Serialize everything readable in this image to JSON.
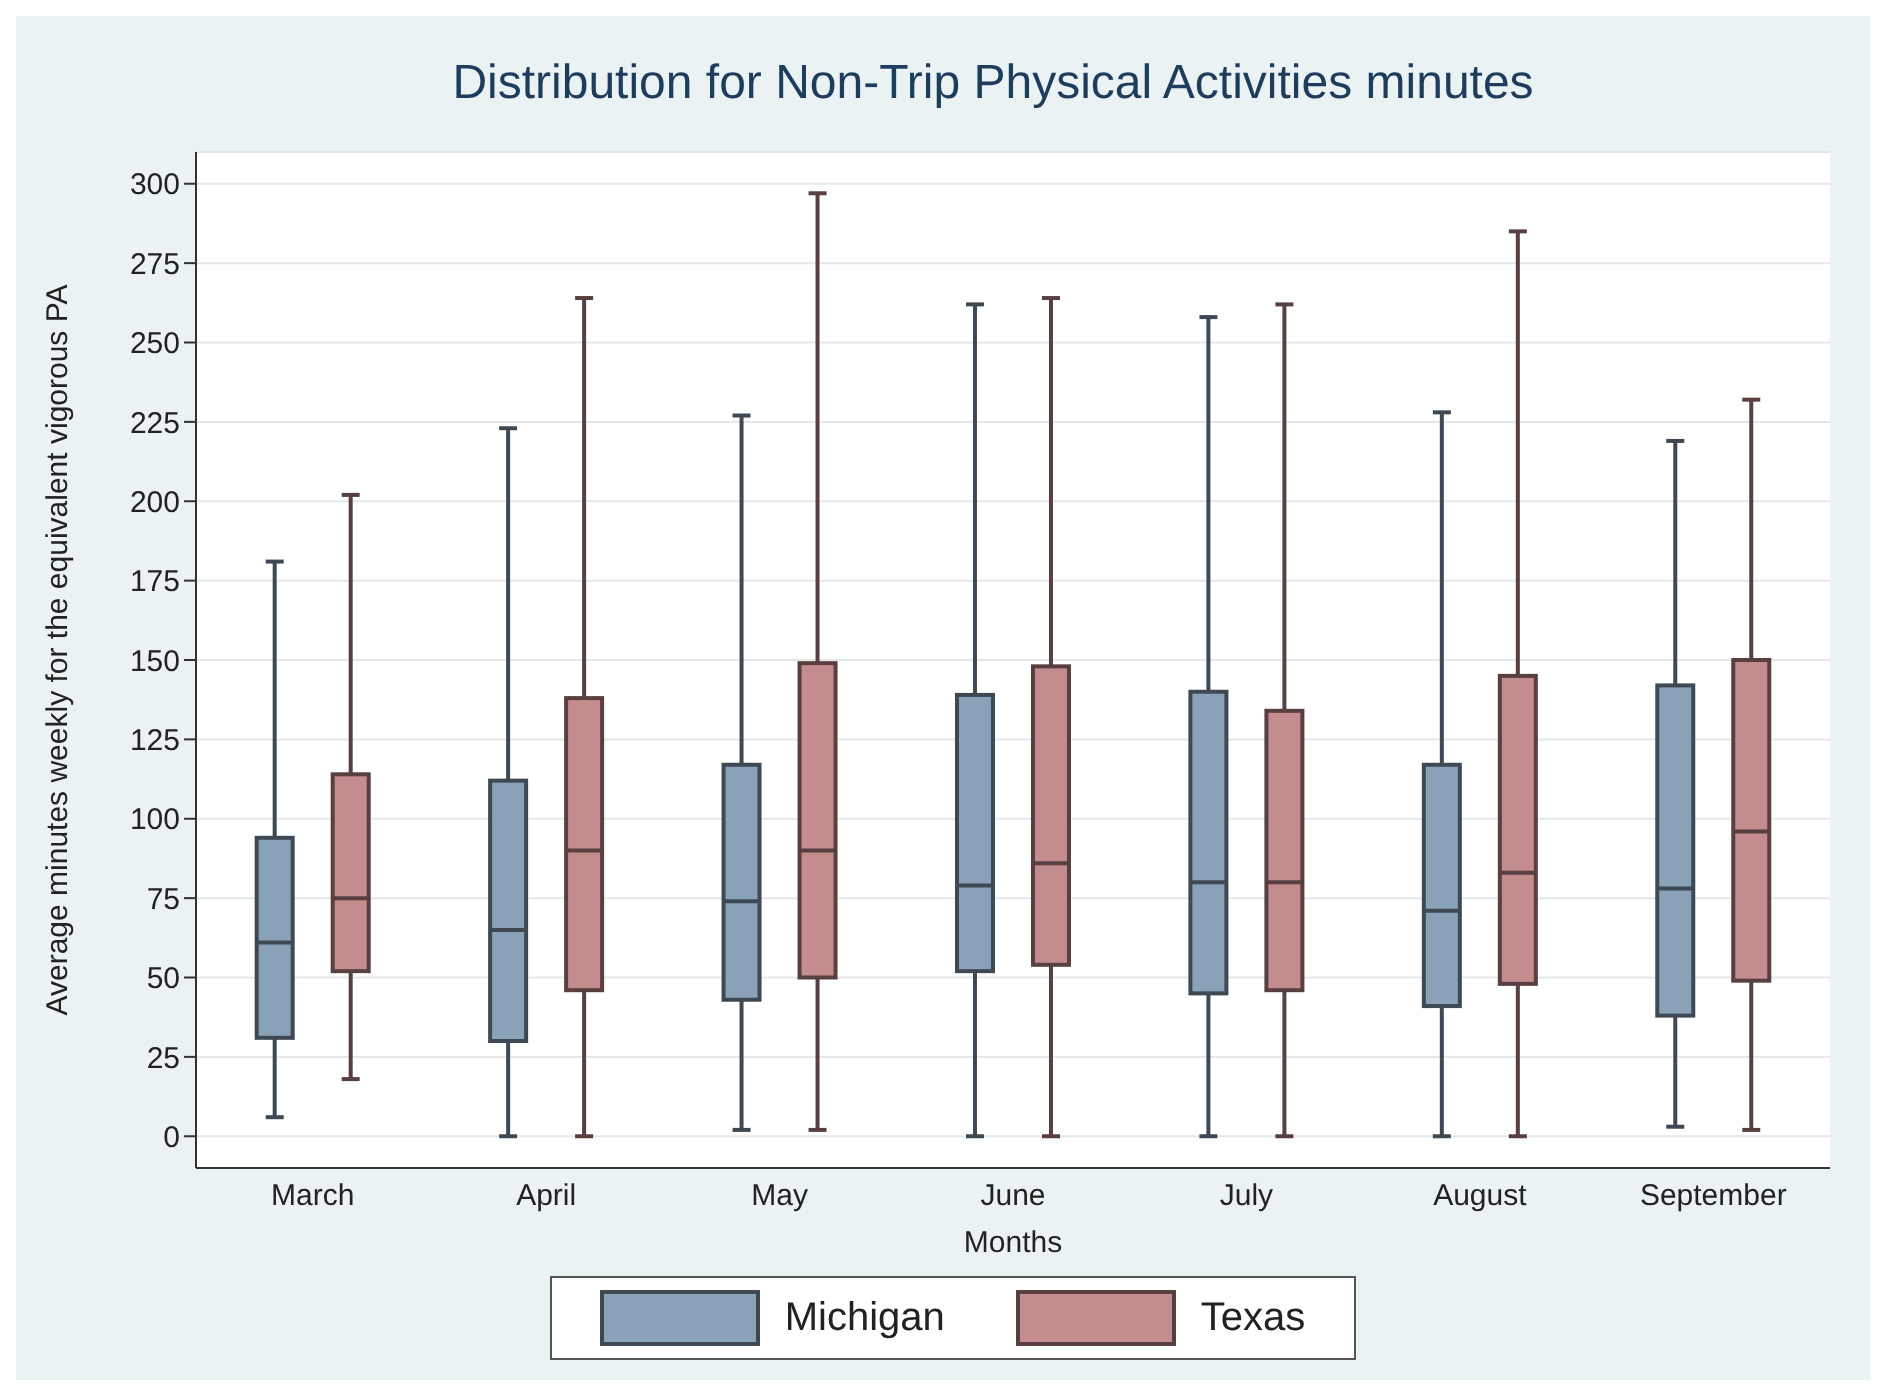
{
  "chart_data": {
    "type": "box",
    "title": "Distribution for Non-Trip Physical Activities minutes",
    "xlabel": "Months",
    "ylabel": "Average minutes weekly for the equivalent vigorous PA",
    "categories": [
      "March",
      "April",
      "May",
      "June",
      "July",
      "August",
      "September"
    ],
    "series": [
      {
        "name": "Michigan",
        "color": "#8aa2b8",
        "boxes": [
          {
            "low": 6,
            "q1": 31,
            "median": 61,
            "q3": 94,
            "high": 181
          },
          {
            "low": 0,
            "q1": 30,
            "median": 65,
            "q3": 112,
            "high": 223
          },
          {
            "low": 2,
            "q1": 43,
            "median": 74,
            "q3": 117,
            "high": 227
          },
          {
            "low": 0,
            "q1": 52,
            "median": 79,
            "q3": 139,
            "high": 262
          },
          {
            "low": 0,
            "q1": 45,
            "median": 80,
            "q3": 140,
            "high": 258
          },
          {
            "low": 0,
            "q1": 41,
            "median": 71,
            "q3": 117,
            "high": 228
          },
          {
            "low": 3,
            "q1": 38,
            "median": 78,
            "q3": 142,
            "high": 219
          }
        ]
      },
      {
        "name": "Texas",
        "color": "#c48c8f",
        "boxes": [
          {
            "low": 18,
            "q1": 52,
            "median": 75,
            "q3": 114,
            "high": 202
          },
          {
            "low": 0,
            "q1": 46,
            "median": 90,
            "q3": 138,
            "high": 264
          },
          {
            "low": 2,
            "q1": 50,
            "median": 90,
            "q3": 149,
            "high": 297
          },
          {
            "low": 0,
            "q1": 54,
            "median": 86,
            "q3": 148,
            "high": 264
          },
          {
            "low": 0,
            "q1": 46,
            "median": 80,
            "q3": 134,
            "high": 262
          },
          {
            "low": 0,
            "q1": 48,
            "median": 83,
            "q3": 145,
            "high": 285
          },
          {
            "low": 2,
            "q1": 49,
            "median": 96,
            "q3": 150,
            "high": 232
          }
        ]
      }
    ],
    "ylim": [
      -10,
      310
    ],
    "yticks": [
      0,
      25,
      50,
      75,
      100,
      125,
      150,
      175,
      200,
      225,
      250,
      275,
      300
    ],
    "grid": "y",
    "legend": "bottom"
  }
}
